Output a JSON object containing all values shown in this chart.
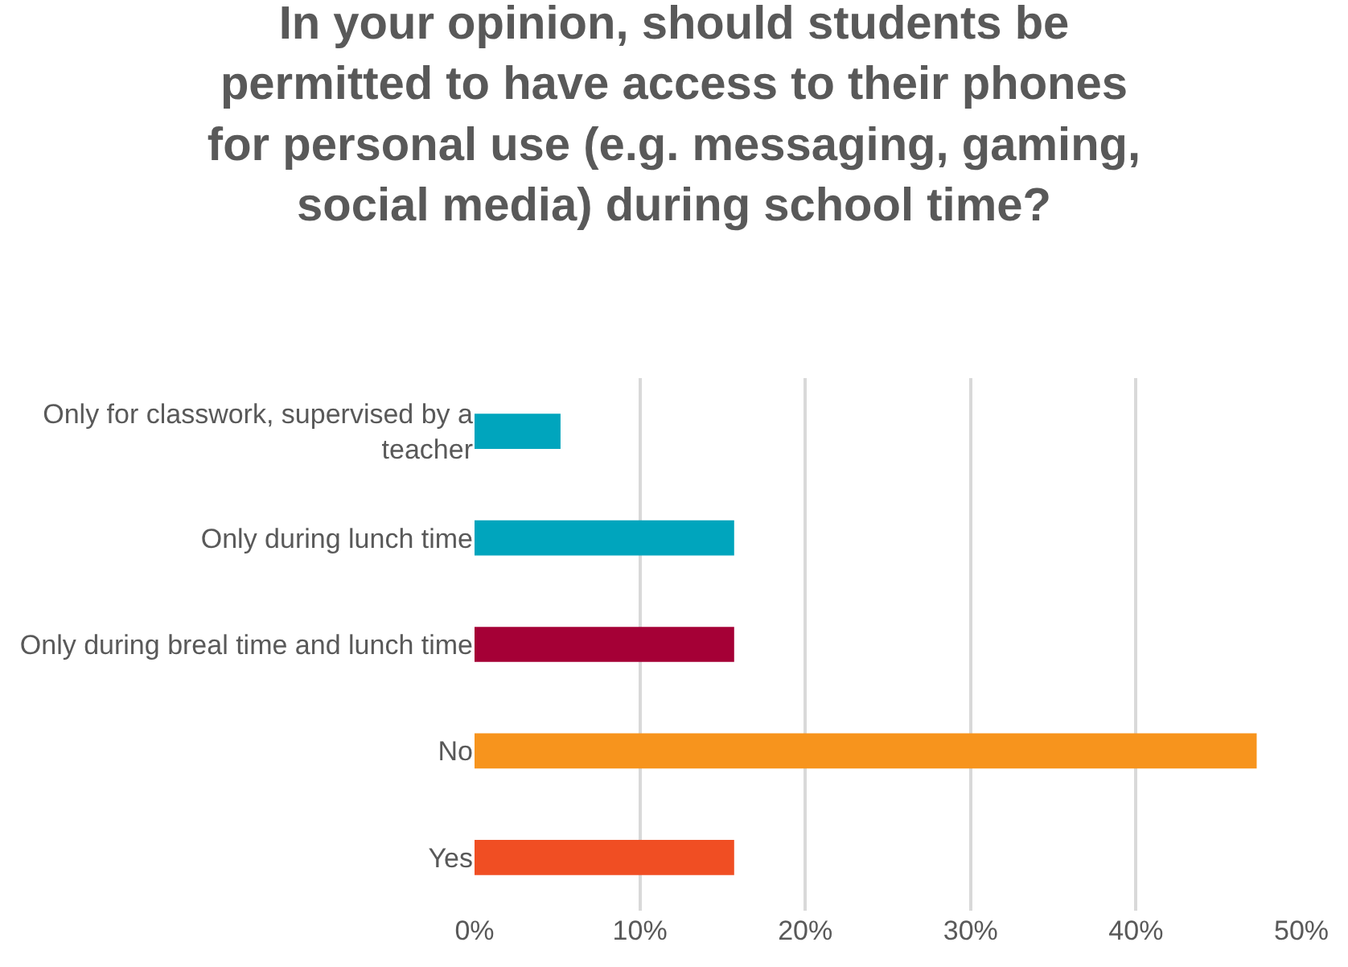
{
  "chart_data": {
    "type": "bar",
    "orientation": "horizontal",
    "title": "In your opinion, should students be permitted to have access to their phones for personal use (e.g. messaging, gaming, social media) during school time?",
    "categories": [
      "Only for classwork, supervised by a teacher",
      "Only during lunch time",
      "Only during breal time and lunch time",
      "No",
      "Yes"
    ],
    "values": [
      5.2,
      15.7,
      15.7,
      47.3,
      15.7
    ],
    "colors": [
      "#00a5bd",
      "#00a5bd",
      "#a50036",
      "#f7941d",
      "#f04e23"
    ],
    "xlim": [
      0,
      50
    ],
    "xticks": [
      {
        "value": 0,
        "label": "0%"
      },
      {
        "value": 10,
        "label": "10%"
      },
      {
        "value": 20,
        "label": "20%"
      },
      {
        "value": 30,
        "label": "30%"
      },
      {
        "value": 40,
        "label": "40%"
      },
      {
        "value": 50,
        "label": "50%"
      }
    ],
    "grid": "x",
    "legend": false
  }
}
